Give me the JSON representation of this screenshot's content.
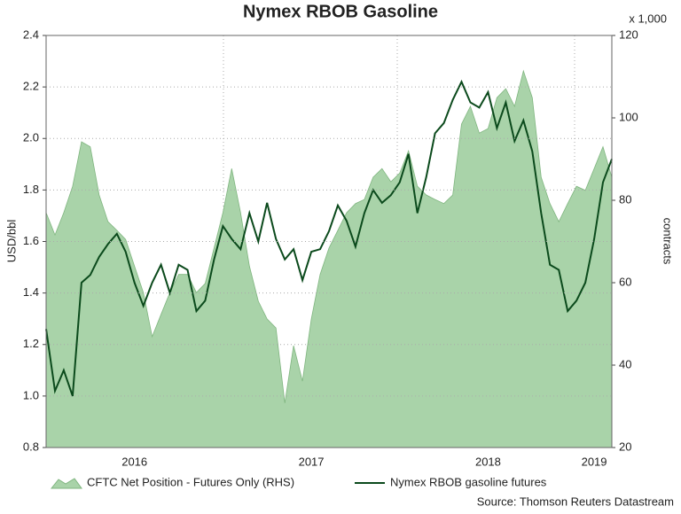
{
  "chart_data": {
    "type": "line",
    "title": "Nymex RBOB Gasoline",
    "ylabel": "USD/bbl",
    "y2label": "contracts",
    "y2unit": "x 1,000",
    "source": "Source: Thomson Reuters Datastream",
    "categories": [
      null,
      null,
      null,
      null,
      null,
      null,
      null,
      null,
      null,
      null,
      "2016",
      null,
      null,
      null,
      null,
      null,
      null,
      null,
      null,
      null,
      null,
      null,
      null,
      null,
      null,
      null,
      null,
      null,
      null,
      null,
      "2017",
      null,
      null,
      null,
      null,
      null,
      null,
      null,
      null,
      null,
      null,
      null,
      null,
      null,
      null,
      null,
      null,
      null,
      null,
      null,
      "2018",
      null,
      null,
      null,
      null,
      null,
      null,
      null,
      null,
      null,
      null,
      null,
      "2019",
      null,
      null
    ],
    "ylim": [
      0.8,
      2.4
    ],
    "yticks": [
      0.8,
      {
        "value": 1,
        "label": "1.0"
      },
      1.2,
      1.4,
      1.6,
      1.8,
      {
        "value": 2,
        "label": "2.0"
      },
      2.2,
      2.4
    ],
    "y2lim": [
      20,
      120
    ],
    "y2ticks": [
      20,
      40,
      60,
      80,
      100,
      120
    ],
    "grid": true,
    "series": [
      {
        "name": "CFTC Net Position - Futures Only (RHS)",
        "kind": "area",
        "axis": "y2",
        "color": "#a9d3a9",
        "values": [
          77,
          71.6,
          77,
          83.4,
          94.2,
          93,
          81.3,
          74.8,
          72.7,
          70.5,
          64,
          57.6,
          46.9,
          52.3,
          57.6,
          62,
          62,
          57.6,
          59.8,
          68.4,
          77,
          87.7,
          77,
          64,
          55.5,
          51.2,
          49,
          30.8,
          44.7,
          36.1,
          51.2,
          62,
          68.4,
          72.7,
          77,
          79.2,
          80.2,
          85.6,
          87.7,
          84.5,
          86.6,
          92,
          83.4,
          81.3,
          80.2,
          79.2,
          81.3,
          98.5,
          102.8,
          96.3,
          97.4,
          104.9,
          107.1,
          102.8,
          111.4,
          104.9,
          85.6,
          79.2,
          74.8,
          79.2,
          83.4,
          82.4,
          87.7,
          93,
          85.6
        ]
      },
      {
        "name": "Nymex RBOB gasoline futures",
        "kind": "line",
        "color": "#0b4a1c",
        "values": [
          1.26,
          1.02,
          1.1,
          1.0,
          1.44,
          1.47,
          1.54,
          1.59,
          1.63,
          1.56,
          1.44,
          1.35,
          1.44,
          1.51,
          1.4,
          1.51,
          1.49,
          1.33,
          1.37,
          1.53,
          1.66,
          1.61,
          1.57,
          1.71,
          1.6,
          1.75,
          1.61,
          1.53,
          1.57,
          1.45,
          1.56,
          1.57,
          1.64,
          1.74,
          1.68,
          1.58,
          1.71,
          1.8,
          1.75,
          1.78,
          1.83,
          1.94,
          1.71,
          1.85,
          2.02,
          2.06,
          2.15,
          2.22,
          2.14,
          2.12,
          2.18,
          2.04,
          2.14,
          1.99,
          2.07,
          1.95,
          1.71,
          1.51,
          1.49,
          1.33,
          1.37,
          1.44,
          1.61,
          1.83,
          1.92
        ]
      }
    ]
  }
}
